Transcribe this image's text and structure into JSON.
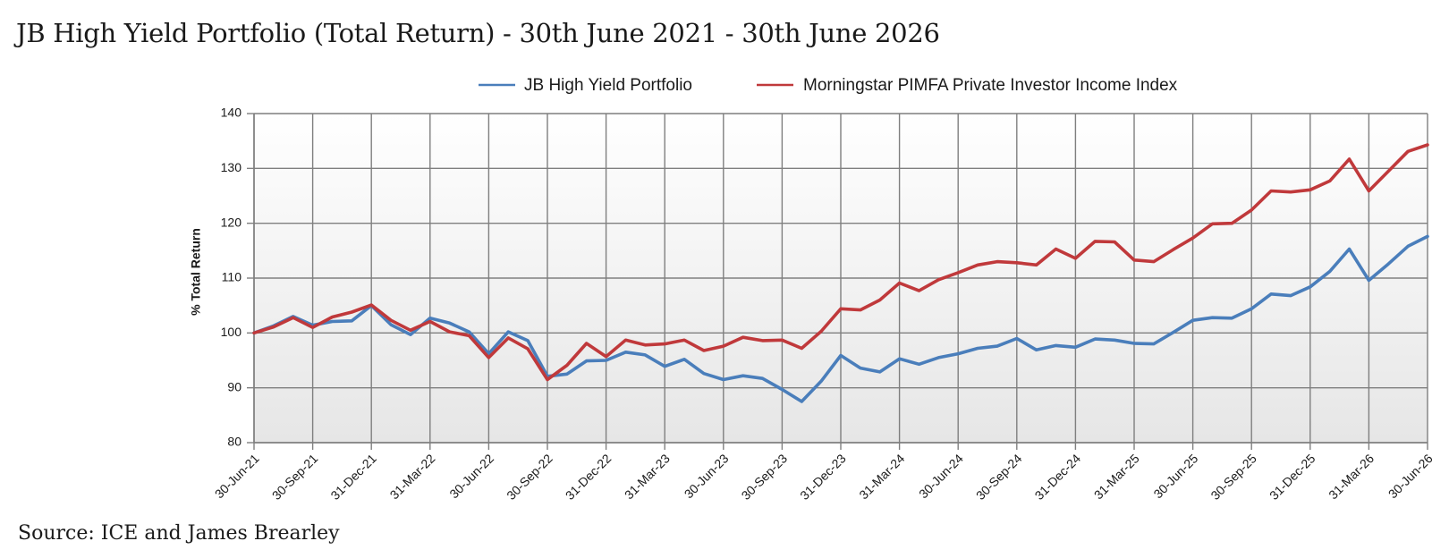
{
  "header": {
    "title": "JB High Yield Portfolio (Total Return) - 30th June 2021 - 30th June 2026"
  },
  "footer": {
    "source": "Source: ICE and James Brearley"
  },
  "chart_data": {
    "type": "line",
    "title": "JB High Yield Portfolio (Total Return) - 30th June 2021 - 30th June 2026",
    "xlabel": "",
    "ylabel": "% Total Return",
    "ylim": [
      80,
      140
    ],
    "yticks": [
      80,
      90,
      100,
      110,
      120,
      130,
      140
    ],
    "grid": true,
    "legend_position": "top",
    "x_tick_labels": [
      "30-Jun-21",
      "30-Sep-21",
      "31-Dec-21",
      "31-Mar-22",
      "30-Jun-22",
      "30-Sep-22",
      "31-Dec-22",
      "31-Mar-23",
      "30-Jun-23",
      "30-Sep-23",
      "31-Dec-23",
      "31-Mar-24",
      "30-Jun-24",
      "30-Sep-24",
      "31-Dec-24",
      "31-Mar-25",
      "30-Jun-25",
      "30-Sep-25",
      "31-Dec-25",
      "31-Mar-26",
      "30-Jun-26"
    ],
    "x": [
      "30-Jun-21",
      "31-Jul-21",
      "31-Aug-21",
      "30-Sep-21",
      "31-Oct-21",
      "30-Nov-21",
      "31-Dec-21",
      "31-Jan-22",
      "28-Feb-22",
      "31-Mar-22",
      "30-Apr-22",
      "31-May-22",
      "30-Jun-22",
      "31-Jul-22",
      "31-Aug-22",
      "30-Sep-22",
      "31-Oct-22",
      "30-Nov-22",
      "31-Dec-22",
      "31-Jan-23",
      "28-Feb-23",
      "31-Mar-23",
      "30-Apr-23",
      "31-May-23",
      "30-Jun-23",
      "31-Jul-23",
      "31-Aug-23",
      "30-Sep-23",
      "31-Oct-23",
      "30-Nov-23",
      "31-Dec-23",
      "31-Jan-24",
      "29-Feb-24",
      "31-Mar-24",
      "30-Apr-24",
      "31-May-24",
      "30-Jun-24",
      "31-Jul-24",
      "31-Aug-24",
      "30-Sep-24",
      "31-Oct-24",
      "30-Nov-24",
      "31-Dec-24",
      "31-Jan-25",
      "28-Feb-25",
      "31-Mar-25",
      "30-Apr-25",
      "31-May-25",
      "30-Jun-25",
      "31-Jul-25",
      "31-Aug-25",
      "30-Sep-25",
      "31-Oct-25",
      "30-Nov-25",
      "31-Dec-25",
      "31-Jan-26",
      "28-Feb-26",
      "31-Mar-26",
      "30-Apr-26",
      "31-May-26",
      "30-Jun-26"
    ],
    "series": [
      {
        "name": "JB High Yield Portfolio",
        "color": "#4a7ebb",
        "values": [
          100,
          101.3,
          103.0,
          101.4,
          102.1,
          102.2,
          105.0,
          101.5,
          99.7,
          102.7,
          101.8,
          100.2,
          96.2,
          100.2,
          98.6,
          92.1,
          92.5,
          94.9,
          95.0,
          96.5,
          96.0,
          93.9,
          95.2,
          92.6,
          91.5,
          92.2,
          91.7,
          89.7,
          87.5,
          91.2,
          95.9,
          93.6,
          92.9,
          95.3,
          94.3,
          95.5,
          96.2,
          97.2,
          97.6,
          99.0,
          96.9,
          97.7,
          97.4,
          98.9,
          98.7,
          98.1,
          98.0,
          100.1,
          102.3,
          102.8,
          102.7,
          104.4,
          107.1,
          106.8,
          108.4,
          111.2,
          115.3,
          109.6,
          112.6,
          115.8,
          117.6
        ]
      },
      {
        "name": "Morningstar PIMFA Private Investor Income Index",
        "color": "#c0393b",
        "values": [
          100,
          101.1,
          102.8,
          101.0,
          102.9,
          103.8,
          105.1,
          102.3,
          100.5,
          102.1,
          100.2,
          99.5,
          95.5,
          99.1,
          97.1,
          91.5,
          94.1,
          98.1,
          95.7,
          98.7,
          97.8,
          98.0,
          98.7,
          96.8,
          97.6,
          99.2,
          98.6,
          98.7,
          97.2,
          100.3,
          104.4,
          104.2,
          106.0,
          109.1,
          107.7,
          109.7,
          111.0,
          112.4,
          113.0,
          112.8,
          112.4,
          115.3,
          113.6,
          116.7,
          116.6,
          113.3,
          113.0,
          115.2,
          117.3,
          119.9,
          120.0,
          122.4,
          125.9,
          125.7,
          126.1,
          127.7,
          131.7,
          125.9,
          129.5,
          133.1,
          134.3
        ]
      }
    ]
  }
}
